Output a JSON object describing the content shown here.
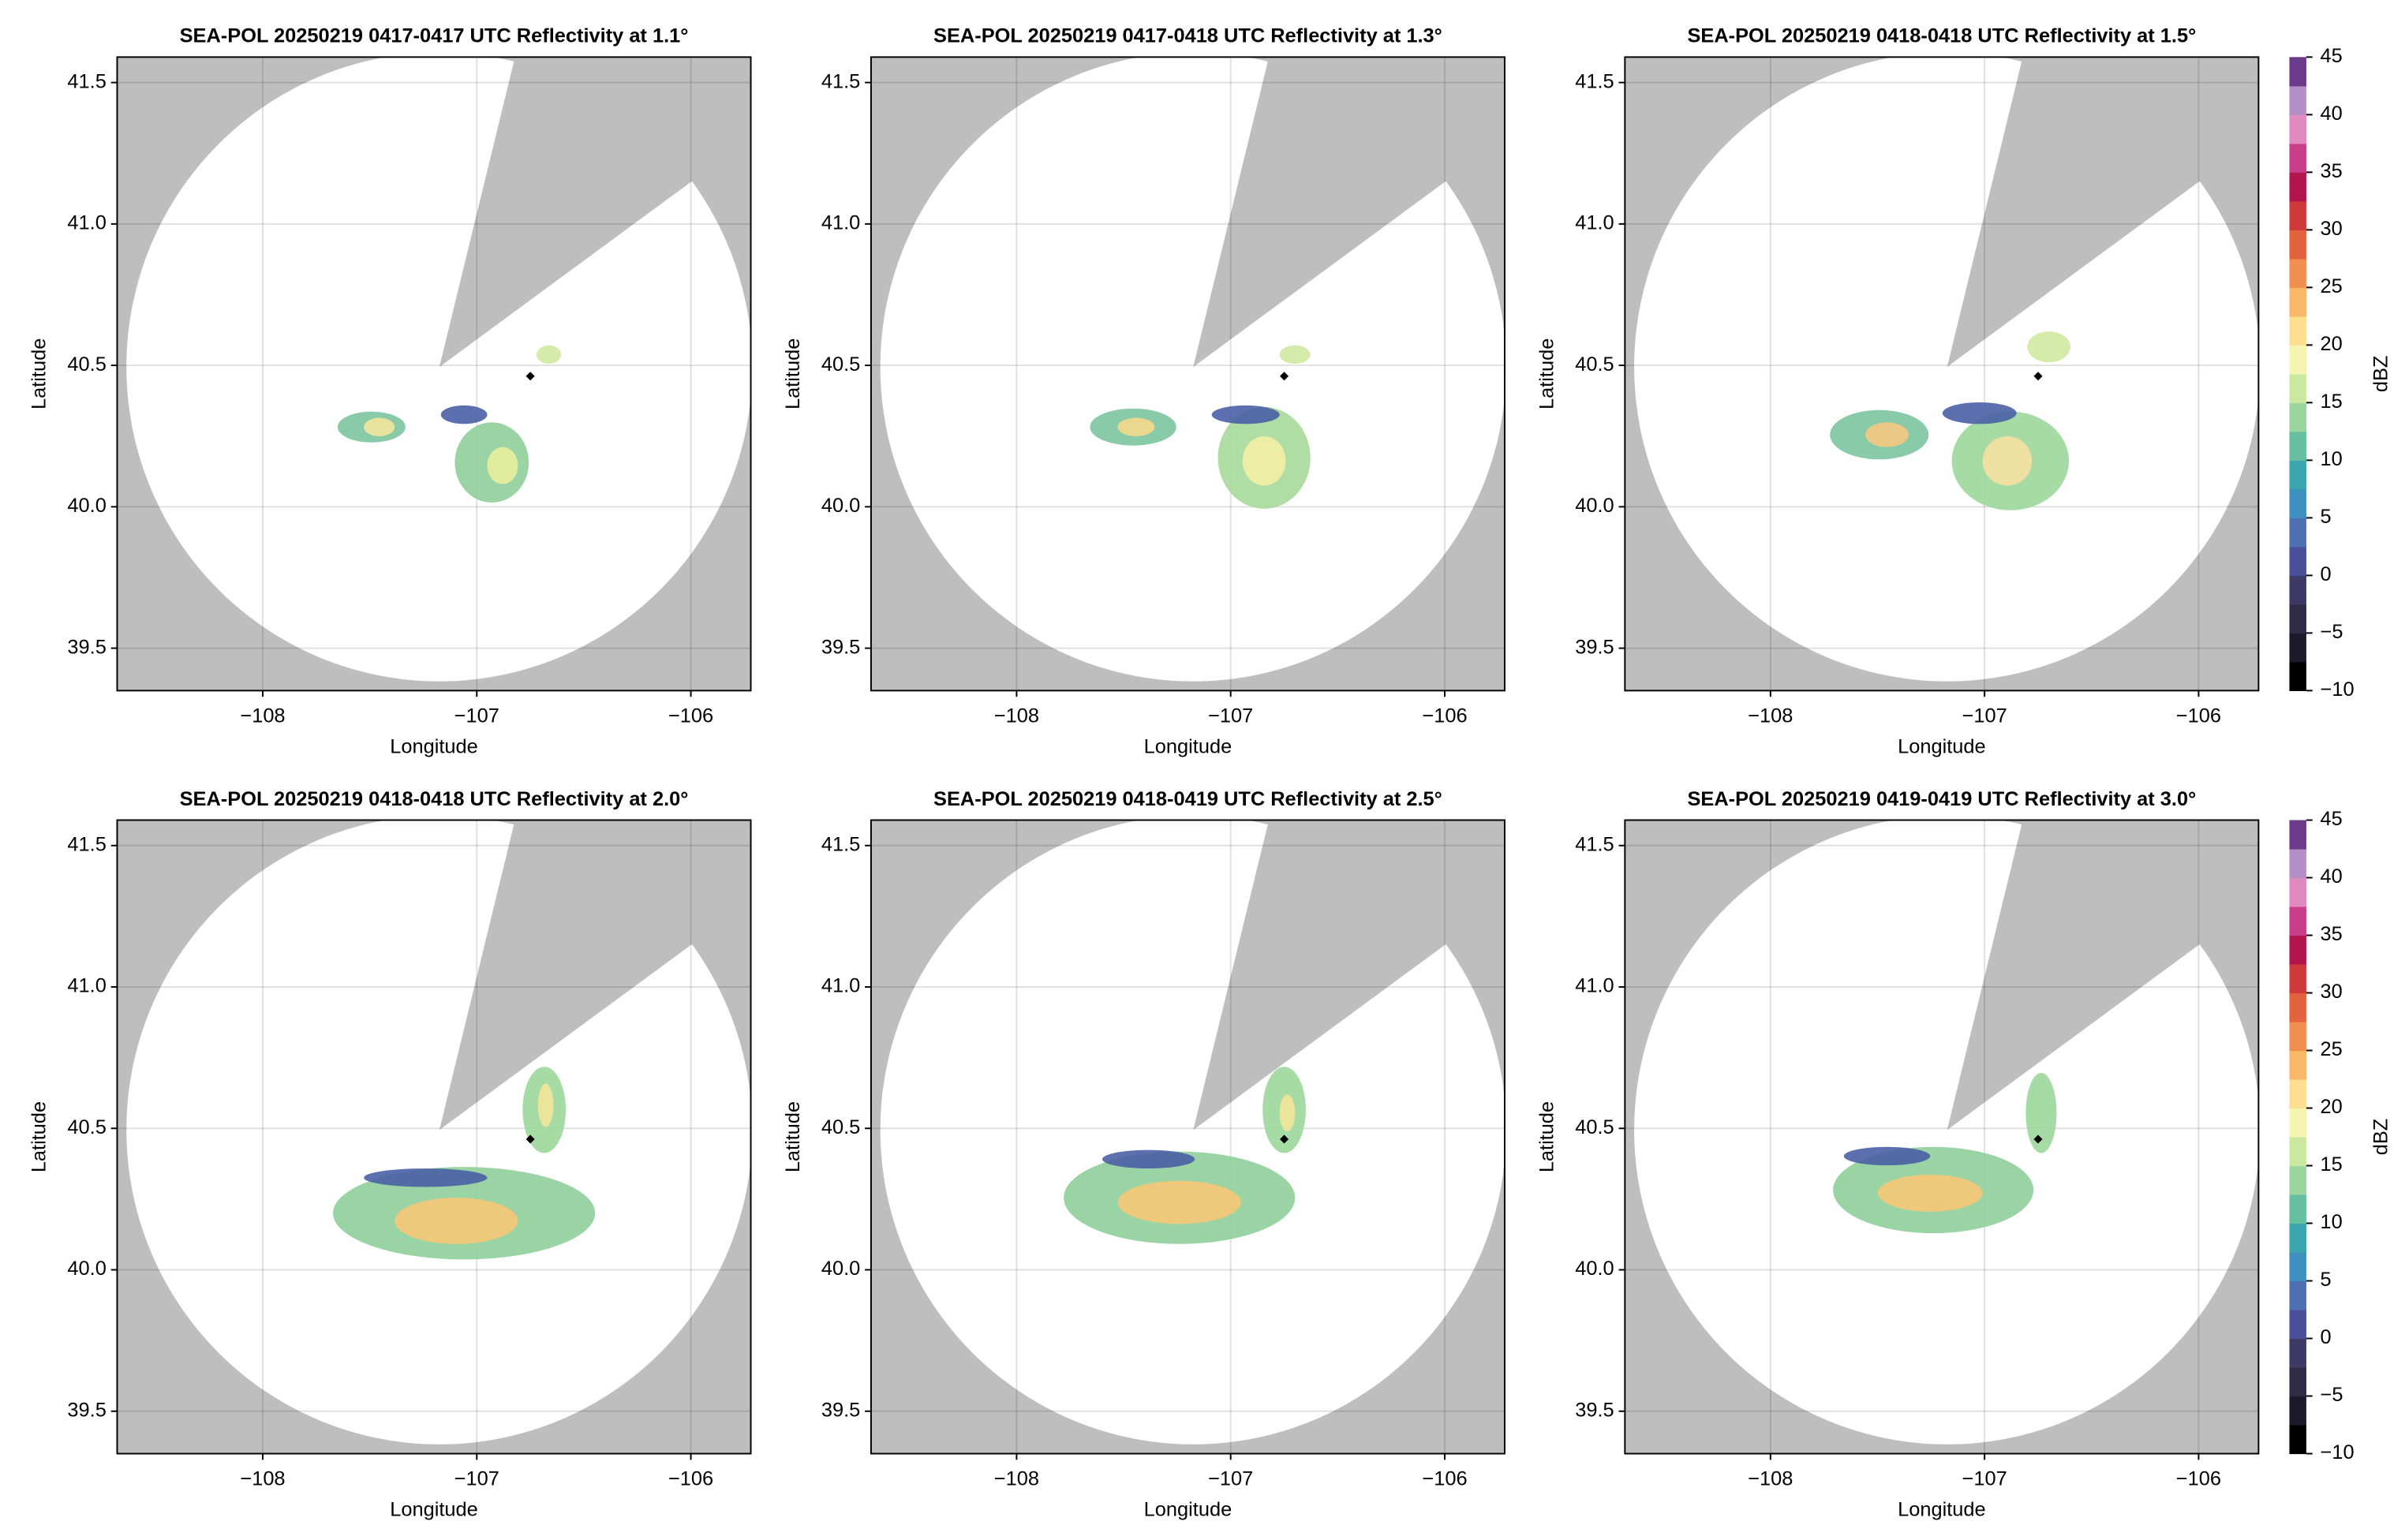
{
  "chart_data": [
    {
      "type": "radar-ppi",
      "title": "SEA-POL 20250219 0417-0417 UTC Reflectivity at 1.1°",
      "xlabel": "Longitude",
      "ylabel": "Latitude",
      "xlim": [
        -108.68,
        -105.72
      ],
      "ylim": [
        39.35,
        41.59
      ],
      "xticks": [
        {
          "value": -108,
          "label": "−108"
        },
        {
          "value": -107,
          "label": "−107"
        },
        {
          "value": -106,
          "label": "−106"
        }
      ],
      "yticks": [
        39.5,
        {
          "value": 40,
          "label": "40.0"
        },
        40.5,
        {
          "value": 41,
          "label": "41.0"
        },
        41.5
      ],
      "grid": true
    },
    {
      "type": "radar-ppi",
      "title": "SEA-POL 20250219 0417-0418 UTC Reflectivity at 1.3°",
      "xlabel": "Longitude",
      "ylabel": "Latitude",
      "xlim": [
        -108.68,
        -105.72
      ],
      "ylim": [
        39.35,
        41.59
      ],
      "xticks": [
        {
          "value": -108,
          "label": "−108"
        },
        {
          "value": -107,
          "label": "−107"
        },
        {
          "value": -106,
          "label": "−106"
        }
      ],
      "yticks": [
        39.5,
        {
          "value": 40,
          "label": "40.0"
        },
        40.5,
        {
          "value": 41,
          "label": "41.0"
        },
        41.5
      ],
      "grid": true
    },
    {
      "type": "radar-ppi",
      "title": "SEA-POL 20250219 0418-0418 UTC Reflectivity at 1.5°",
      "xlabel": "Longitude",
      "ylabel": "Latitude",
      "xlim": [
        -108.68,
        -105.72
      ],
      "ylim": [
        39.35,
        41.59
      ],
      "xticks": [
        {
          "value": -108,
          "label": "−108"
        },
        {
          "value": -107,
          "label": "−107"
        },
        {
          "value": -106,
          "label": "−106"
        }
      ],
      "yticks": [
        39.5,
        {
          "value": 40,
          "label": "40.0"
        },
        40.5,
        {
          "value": 41,
          "label": "41.0"
        },
        41.5
      ],
      "grid": true
    },
    {
      "type": "radar-ppi",
      "title": "SEA-POL 20250219 0418-0418 UTC Reflectivity at 2.0°",
      "xlabel": "Longitude",
      "ylabel": "Latitude",
      "xlim": [
        -108.68,
        -105.72
      ],
      "ylim": [
        39.35,
        41.59
      ],
      "xticks": [
        {
          "value": -108,
          "label": "−108"
        },
        {
          "value": -107,
          "label": "−107"
        },
        {
          "value": -106,
          "label": "−106"
        }
      ],
      "yticks": [
        39.5,
        {
          "value": 40,
          "label": "40.0"
        },
        40.5,
        {
          "value": 41,
          "label": "41.0"
        },
        41.5
      ],
      "grid": true
    },
    {
      "type": "radar-ppi",
      "title": "SEA-POL 20250219 0418-0419 UTC Reflectivity at 2.5°",
      "xlabel": "Longitude",
      "ylabel": "Latitude",
      "xlim": [
        -108.68,
        -105.72
      ],
      "ylim": [
        39.35,
        41.59
      ],
      "xticks": [
        {
          "value": -108,
          "label": "−108"
        },
        {
          "value": -107,
          "label": "−107"
        },
        {
          "value": -106,
          "label": "−106"
        }
      ],
      "yticks": [
        39.5,
        {
          "value": 40,
          "label": "40.0"
        },
        40.5,
        {
          "value": 41,
          "label": "41.0"
        },
        41.5
      ],
      "grid": true
    },
    {
      "type": "radar-ppi",
      "title": "SEA-POL 20250219 0419-0419 UTC Reflectivity at 3.0°",
      "xlabel": "Longitude",
      "ylabel": "Latitude",
      "xlim": [
        -108.68,
        -105.72
      ],
      "ylim": [
        39.35,
        41.59
      ],
      "xticks": [
        {
          "value": -108,
          "label": "−108"
        },
        {
          "value": -107,
          "label": "−107"
        },
        {
          "value": -106,
          "label": "−106"
        }
      ],
      "yticks": [
        39.5,
        {
          "value": 40,
          "label": "40.0"
        },
        40.5,
        {
          "value": 41,
          "label": "41.0"
        },
        41.5
      ],
      "grid": true
    }
  ],
  "colorbar": {
    "label": "dBZ",
    "lim": [
      -10,
      45
    ],
    "ticks": [
      {
        "value": -10,
        "label": "−10"
      },
      {
        "value": -5,
        "label": "−5"
      },
      0,
      5,
      10,
      15,
      20,
      25,
      30,
      35,
      40,
      45
    ],
    "colors": [
      "#000000",
      "#1c1a2a",
      "#2f2b45",
      "#3e3a66",
      "#4a4f9a",
      "#4f6fb5",
      "#3f8fbf",
      "#3ca6ad",
      "#66bf9f",
      "#9bd5a0",
      "#cbe8a0",
      "#f3f5b0",
      "#fbdf8f",
      "#f8b865",
      "#f08e50",
      "#e2623f",
      "#cc3a3c",
      "#b0154b",
      "#c83e8a",
      "#e08abf",
      "#b48fc6",
      "#6b3a8a"
    ]
  }
}
